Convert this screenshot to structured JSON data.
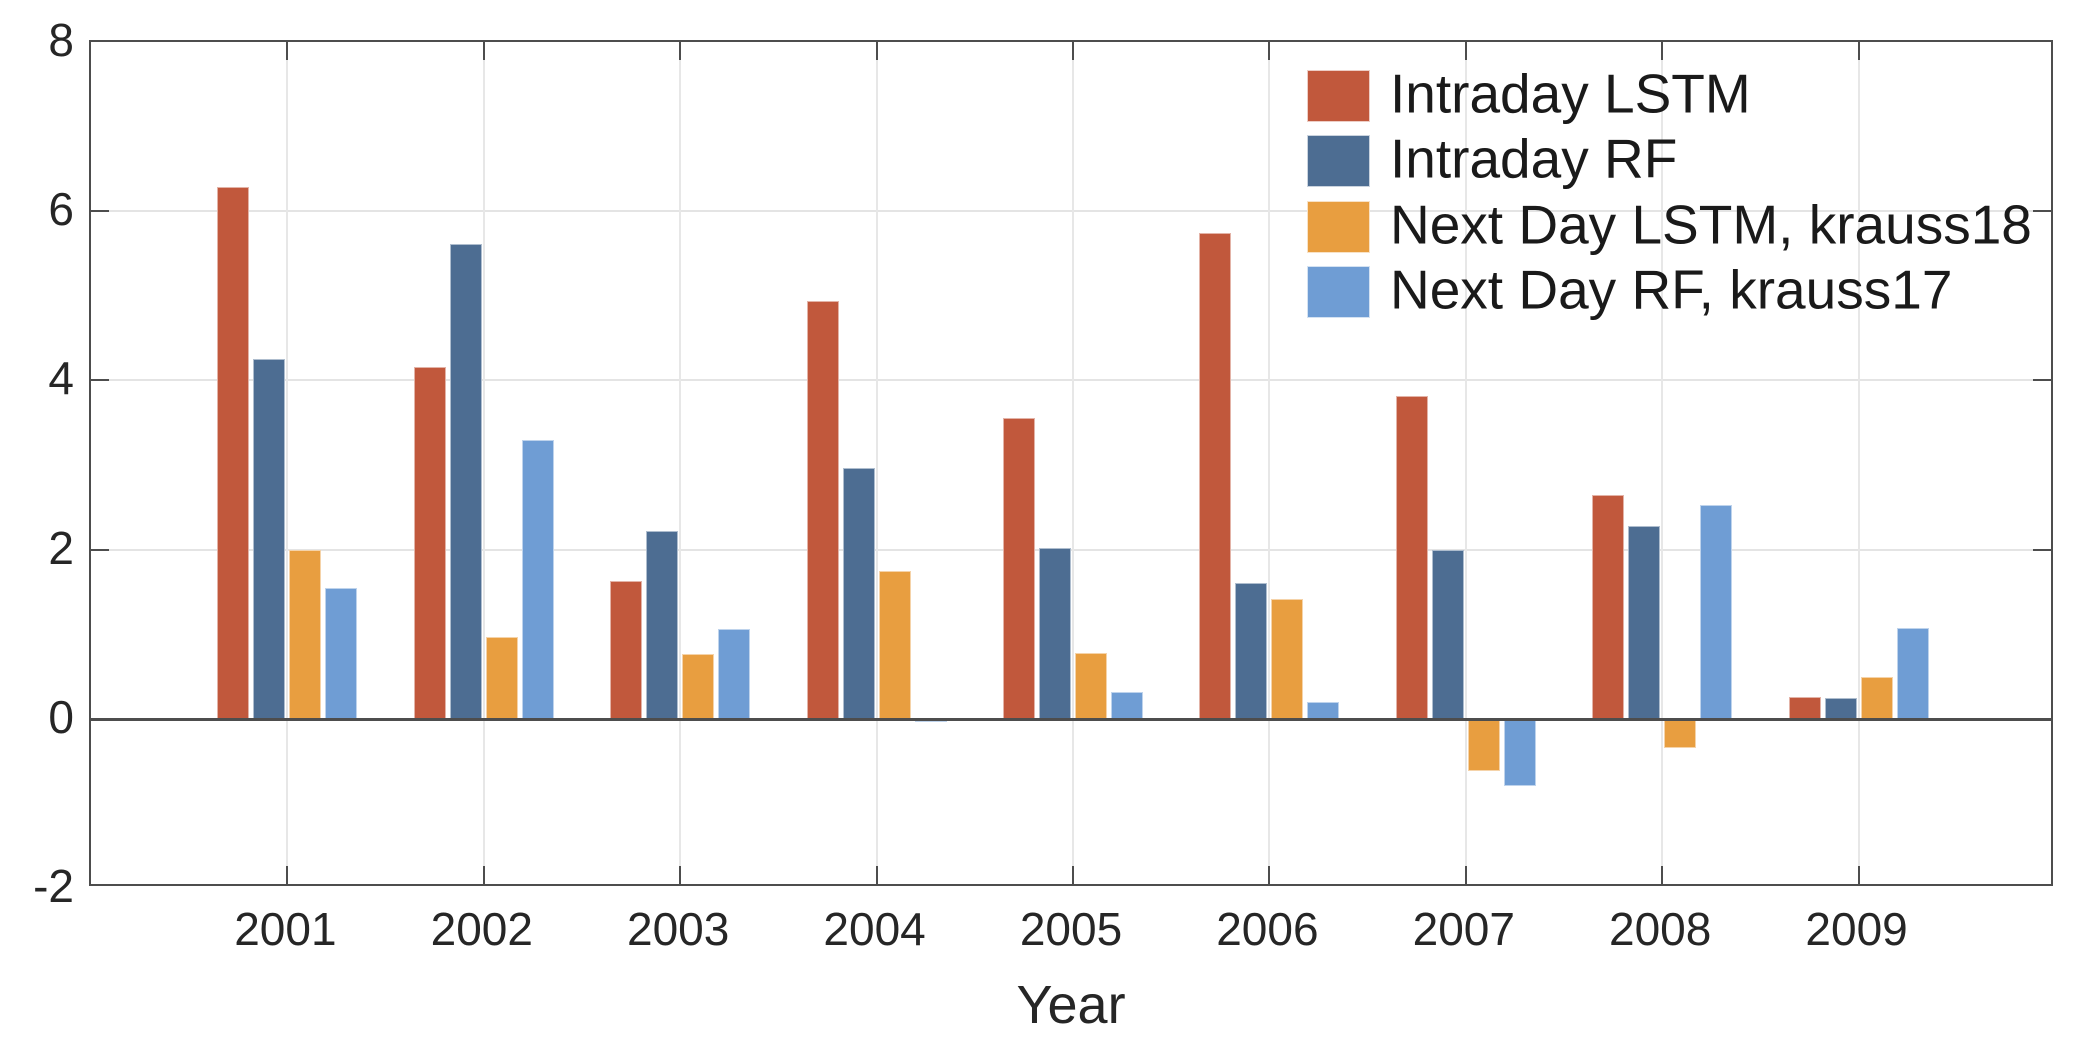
{
  "chart_data": {
    "type": "bar",
    "title": "",
    "xlabel": "Year",
    "ylabel": "",
    "categories": [
      "2001",
      "2002",
      "2003",
      "2004",
      "2005",
      "2006",
      "2007",
      "2008",
      "2009"
    ],
    "ylim": [
      -2,
      8
    ],
    "yticks": [
      -2,
      0,
      2,
      4,
      6,
      8
    ],
    "grid": "on",
    "legend_position": "upper right",
    "legend_frame": "off",
    "series": [
      {
        "name": "Intraday LSTM",
        "color": "#C1583C",
        "values": [
          6.29,
          4.16,
          1.63,
          4.94,
          3.56,
          5.74,
          3.82,
          2.65,
          0.26
        ]
      },
      {
        "name": "Intraday RF",
        "color": "#4D6D92",
        "values": [
          4.25,
          5.61,
          2.22,
          2.96,
          2.02,
          1.6,
          1.99,
          2.28,
          0.25
        ]
      },
      {
        "name": "Next Day LSTM, krauss18",
        "color": "#E89E40",
        "values": [
          2.0,
          0.97,
          0.77,
          1.75,
          0.78,
          1.42,
          -0.62,
          -0.34,
          0.49
        ]
      },
      {
        "name": "Next Day RF, krauss17",
        "color": "#6F9DD4",
        "values": [
          1.55,
          3.29,
          1.06,
          -0.04,
          0.32,
          0.2,
          -0.8,
          2.53,
          1.07
        ]
      }
    ],
    "colors": {
      "axis": "#4d4d4d",
      "grid": "#e5e5e5",
      "text": "#262626"
    }
  }
}
